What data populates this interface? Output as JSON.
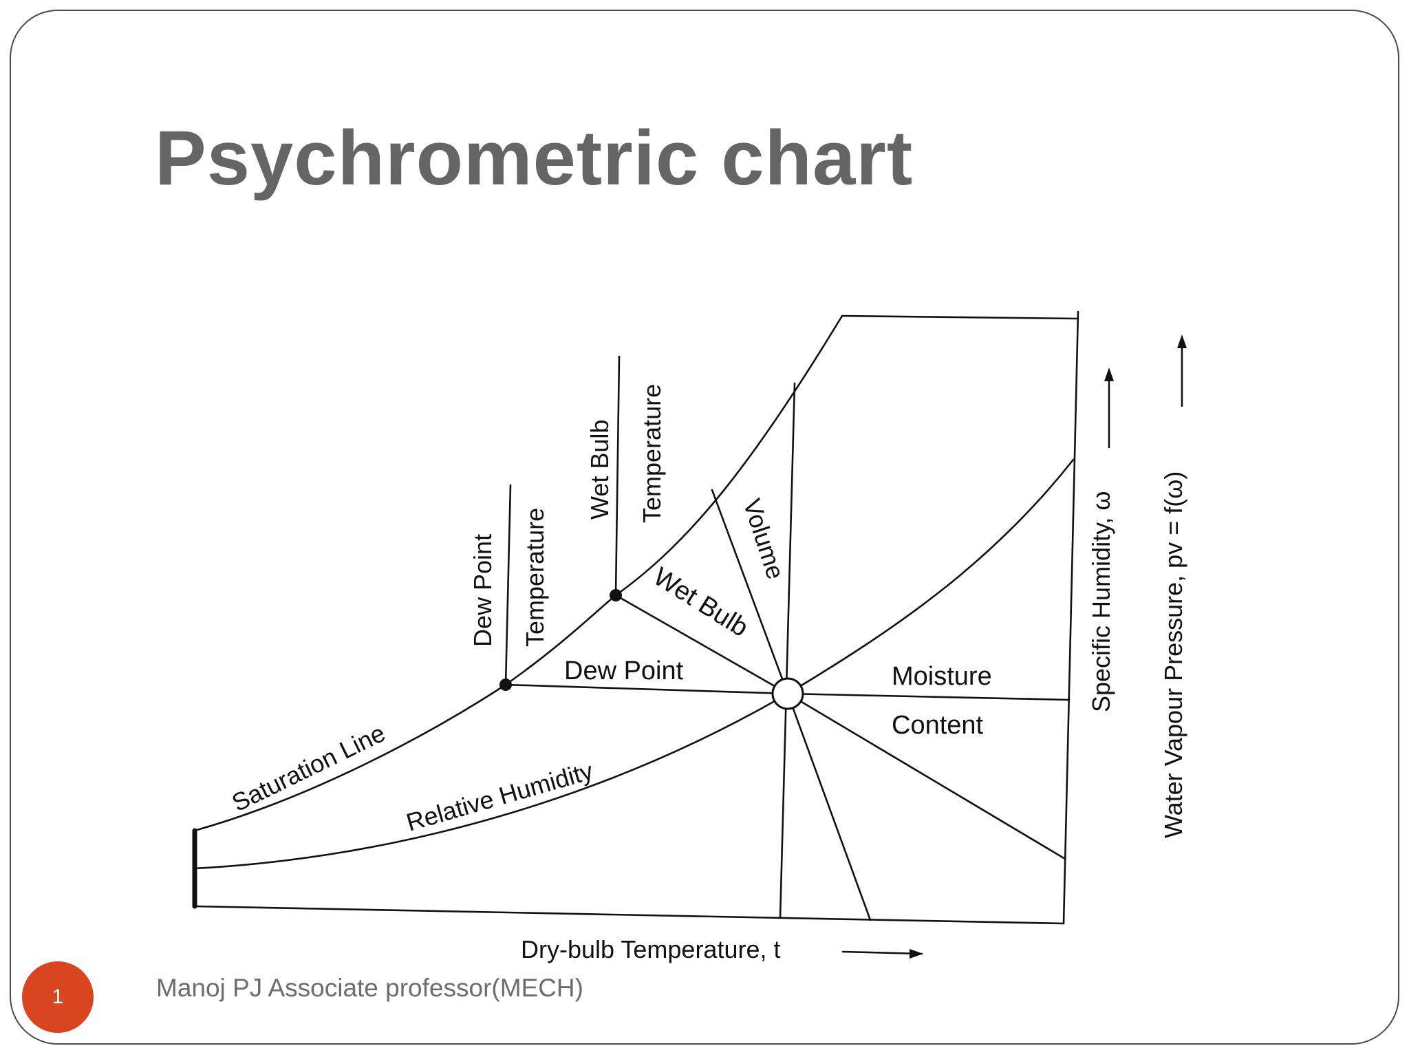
{
  "slide": {
    "title": "Psychrometric chart",
    "page_number": "1",
    "footer": "Manoj PJ Associate professor(MECH)"
  },
  "diagram": {
    "labels": {
      "saturation_line": "Saturation Line",
      "relative_humidity": "Relative Humidity",
      "dew_point_line": "Dew Point",
      "wet_bulb_line": "Wet Bulb",
      "volume": "Volume",
      "moisture": "Moisture",
      "content": "Content",
      "dew_point_temp_1": "Dew Point",
      "dew_point_temp_2": "Temperature",
      "wet_bulb_temp_1": "Wet Bulb",
      "wet_bulb_temp_2": "Temperature",
      "x_axis": "Dry-bulb Temperature, t",
      "specific_humidity_axis": "Specific Humidity, ω",
      "vapour_pressure_axis": "Water Vapour Pressure, pv = f(ω)"
    },
    "colors": {
      "line": "#111111",
      "badge": "#d9451e",
      "title": "#656565"
    }
  }
}
